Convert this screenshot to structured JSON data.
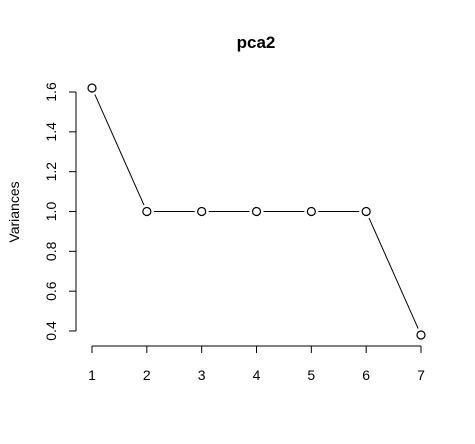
{
  "chart_data": {
    "type": "line",
    "title": "pca2",
    "xlabel": "",
    "ylabel": "Variances",
    "x": [
      1,
      2,
      3,
      4,
      5,
      6,
      7
    ],
    "values": [
      1.62,
      1.0,
      1.0,
      1.0,
      1.0,
      1.0,
      0.38
    ],
    "x_ticks": [
      "1",
      "2",
      "3",
      "4",
      "5",
      "6",
      "7"
    ],
    "y_ticks": [
      "0.4",
      "0.6",
      "0.8",
      "1.0",
      "1.2",
      "1.4",
      "1.6"
    ],
    "xlim": [
      1,
      7
    ],
    "ylim": [
      0.4,
      1.6
    ],
    "grid": false,
    "marker": "open-circle",
    "line_color": "#000000"
  }
}
